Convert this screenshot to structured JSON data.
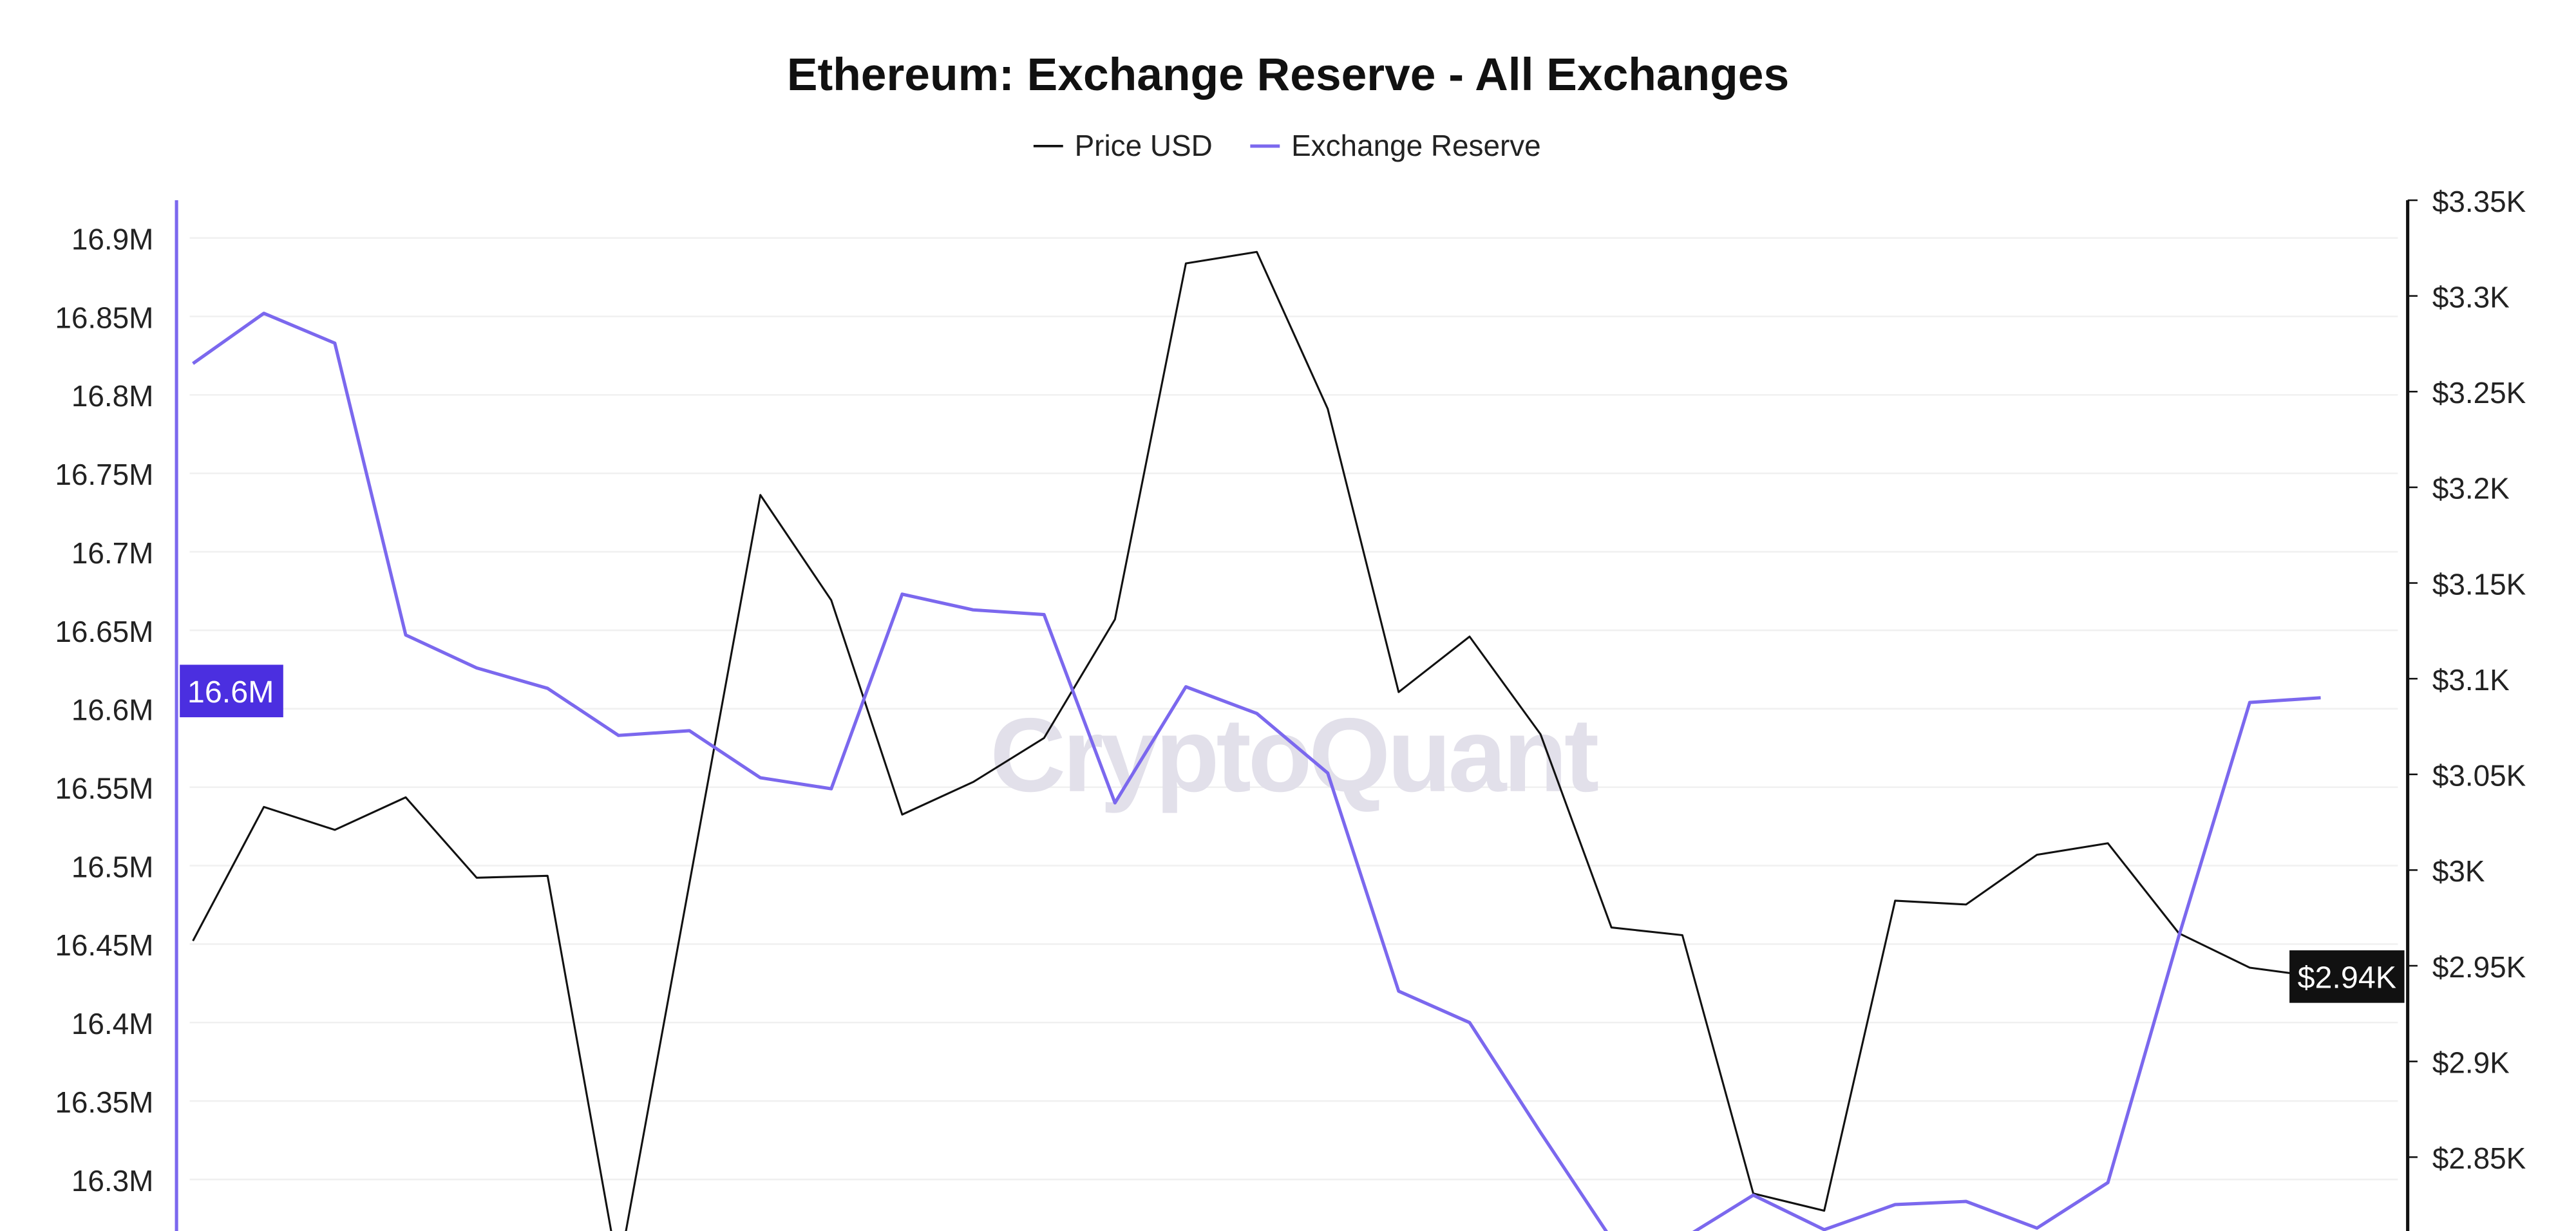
{
  "chart_data": {
    "type": "line",
    "title": "Ethereum: Exchange Reserve - All Exchanges",
    "watermark": "CryptoQuant",
    "legend_position": "top",
    "grid": true,
    "series": [
      {
        "name": "Price USD",
        "axis": "right",
        "color": "#111111",
        "values": [
          2.963,
          3.033,
          3.021,
          3.038,
          2.996,
          2.997,
          2.79,
          2.993,
          3.196,
          3.141,
          3.029,
          3.046,
          3.069,
          3.131,
          3.317,
          3.323,
          3.241,
          3.093,
          3.122,
          3.071,
          2.97,
          2.966,
          2.831,
          2.822,
          2.984,
          2.982,
          3.008,
          3.014,
          2.967,
          2.949,
          2.944
        ]
      },
      {
        "name": "Exchange Reserve",
        "axis": "left",
        "color": "#7b68ee",
        "values": [
          16.82,
          16.852,
          16.833,
          16.647,
          16.626,
          16.613,
          16.583,
          16.586,
          16.556,
          16.549,
          16.673,
          16.663,
          16.66,
          16.54,
          16.614,
          16.597,
          16.559,
          16.42,
          16.4,
          16.33,
          16.262,
          16.262,
          16.29,
          16.268,
          16.284,
          16.286,
          16.269,
          16.298,
          16.455,
          16.604,
          16.607
        ]
      }
    ],
    "left_axis": {
      "unit": "M",
      "range": [
        16.25,
        16.925
      ],
      "ticks": [
        "16.9M",
        "16.85M",
        "16.8M",
        "16.75M",
        "16.7M",
        "16.65M",
        "16.6M",
        "16.55M",
        "16.5M",
        "16.45M",
        "16.4M",
        "16.35M",
        "16.3M"
      ],
      "tick_values": [
        16.9,
        16.85,
        16.8,
        16.75,
        16.7,
        16.65,
        16.6,
        16.55,
        16.5,
        16.45,
        16.4,
        16.35,
        16.3
      ]
    },
    "right_axis": {
      "unit": "K USD",
      "range": [
        2.8,
        3.35
      ],
      "ticks": [
        "$3.35K",
        "$3.3K",
        "$3.25K",
        "$3.2K",
        "$3.15K",
        "$3.1K",
        "$3.05K",
        "$3K",
        "$2.95K",
        "$2.9K",
        "$2.85K"
      ],
      "tick_values": [
        3.35,
        3.3,
        3.25,
        3.2,
        3.15,
        3.1,
        3.05,
        3.0,
        2.95,
        2.9,
        2.85
      ]
    },
    "current_badges": {
      "left": "16.6M",
      "right": "$2.94K",
      "left_color": "#4b2fe0",
      "right_color": "#111111"
    }
  }
}
